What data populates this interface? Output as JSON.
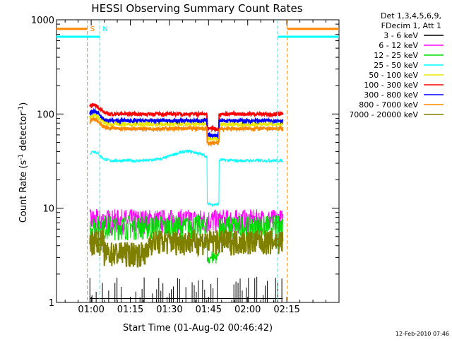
{
  "chart_data": {
    "type": "line",
    "title": "HESSI Observing Summary Count Rates",
    "xlabel": "Start Time (01-Aug-02 00:46:42)",
    "ylabel": "Count Rate (s⁻¹ detector⁻¹)",
    "ylabel_main": "Count Rate (s",
    "ylabel_sup1": "-1",
    "ylabel_mid": " detector",
    "ylabel_sup2": "-1",
    "ylabel_end": ")",
    "y_scale": "log",
    "ylim": [
      1,
      1000
    ],
    "xlim_minutes": [
      46.7,
      155
    ],
    "x_tick_labels": [
      "01:00",
      "01:15",
      "01:30",
      "01:45",
      "02:00",
      "02:15"
    ],
    "x_tick_minutes": [
      60,
      75,
      90,
      105,
      120,
      135
    ],
    "y_tick_labels": [
      "1",
      "10",
      "100",
      "1000"
    ],
    "y_tick_values": [
      1,
      10,
      100,
      1000
    ],
    "legend_header": [
      "Det 1,3,4,5,6,9,",
      "FDecim 1, Att 1"
    ],
    "series": [
      {
        "name": "3 - 6 keV",
        "color": "#000000",
        "level": 1.8
      },
      {
        "name": "6 - 12 keV",
        "color": "#ff00ff",
        "level": 7.5
      },
      {
        "name": "12 - 25 keV",
        "color": "#00dd00",
        "level": 6.5
      },
      {
        "name": "25 - 50 keV",
        "color": "#00ffff",
        "level": 32
      },
      {
        "name": "50 - 100 keV",
        "color": "#e8e800",
        "level": 78
      },
      {
        "name": "100 - 300 keV",
        "color": "#ff0000",
        "level": 100
      },
      {
        "name": "300 - 800 keV",
        "color": "#0000ff",
        "level": 85
      },
      {
        "name": "800 - 7000 keV",
        "color": "#ff8800",
        "level": 70
      },
      {
        "name": "7000 - 20000 keV",
        "color": "#808000",
        "level": 4.5
      }
    ],
    "annotations": [
      {
        "text": "S",
        "color": "#ff8800",
        "minute": 58.5
      },
      {
        "text": "N",
        "color": "#00ffff",
        "minute": 63.3
      }
    ],
    "markers": [
      {
        "kind": "saa",
        "color": "#ff8800",
        "minutes": [
          46.7,
          58.5
        ],
        "value": 800
      },
      {
        "kind": "night",
        "color": "#00ffff",
        "minutes": [
          46.7,
          63.3
        ],
        "value": 660
      },
      {
        "kind": "saa",
        "color": "#ff8800",
        "minutes": [
          135.2,
          155
        ],
        "value": 800
      },
      {
        "kind": "night",
        "color": "#00ffff",
        "minutes": [
          131.5,
          155
        ],
        "value": 660
      }
    ],
    "footer": "12-Feb-2010 07:46"
  }
}
